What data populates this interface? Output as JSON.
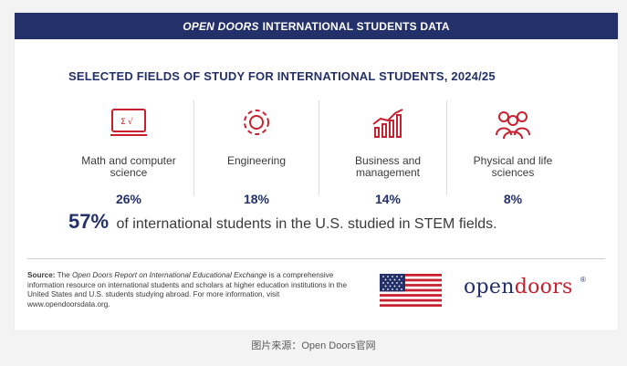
{
  "banner": {
    "italic_part": "OPEN DOORS",
    "rest": "INTERNATIONAL STUDENTS DATA"
  },
  "heading": "SELECTED FIELDS OF STUDY FOR INTERNATIONAL STUDENTS, 2024/25",
  "fields": [
    {
      "icon": "computer-math-icon",
      "label": "Math and computer science",
      "value": "26%"
    },
    {
      "icon": "gear-icon",
      "label": "Engineering",
      "value": "18%"
    },
    {
      "icon": "growth-chart-icon",
      "label": "Business and management",
      "value": "14%"
    },
    {
      "icon": "people-group-icon",
      "label": "Physical and life sciences",
      "value": "8%"
    }
  ],
  "stem": {
    "percent": "57%",
    "text": "of international students in the U.S. studied in STEM fields."
  },
  "source": {
    "label": "Source:",
    "title": "Open Doors Report on International Educational Exchange",
    "text1": "The",
    "text2": "is a comprehensive information resource on international students and scholars at higher education institutions in the United States and U.S. students studying abroad. For more information, visit www.opendoorsdata.org."
  },
  "logo": {
    "part1": "open",
    "part2": "doors",
    "reg": "®"
  },
  "caption": "图片来源：Open Doors官网",
  "colors": {
    "navy": "#24306a",
    "red": "#c7202e"
  }
}
